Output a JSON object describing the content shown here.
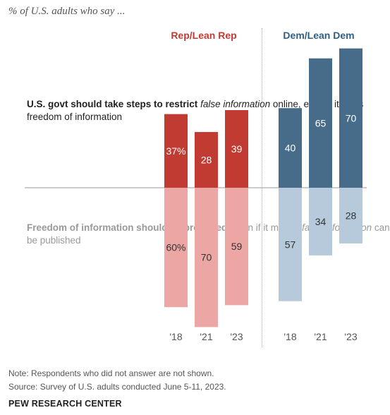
{
  "subtitle": "% of U.S. adults who say ...",
  "groups": {
    "rep": "Rep/Lean Rep",
    "dem": "Dem/Lean Dem"
  },
  "rows": {
    "top": {
      "bold": "U.S. govt should take steps to restrict",
      "italic": "false information",
      "rest": "online, even if it limits freedom of information"
    },
    "bottom": {
      "bold": "Freedom of information should be protected,",
      "rest1": "even if it means",
      "italic": "false information",
      "rest2": "can be published"
    }
  },
  "note": "Note: Respondents who did not answer are not shown.",
  "source": "Source: Survey of U.S. adults conducted June 5-11, 2023.",
  "brand": "PEW RESEARCH CENTER",
  "colors": {
    "rep_top": "#c23b33",
    "rep_bottom": "#eca6a4",
    "dem_top": "#476c8a",
    "dem_bottom": "#b6cadb",
    "label_light": "#ffffff",
    "label_dark": "#333333"
  },
  "chart_data": {
    "type": "bar",
    "categories": [
      "'18",
      "'21",
      "'23"
    ],
    "series": [
      {
        "name": "Rep/Lean Rep",
        "restrict": [
          37,
          28,
          39
        ],
        "protect": [
          60,
          70,
          59
        ],
        "labels_restrict": [
          "37%",
          "28",
          "39"
        ],
        "labels_protect": [
          "60%",
          "70",
          "59"
        ]
      },
      {
        "name": "Dem/Lean Dem",
        "restrict": [
          40,
          65,
          70
        ],
        "protect": [
          57,
          34,
          28
        ],
        "labels_restrict": [
          "40",
          "65",
          "70"
        ],
        "labels_protect": [
          "57",
          "34",
          "28"
        ]
      }
    ],
    "title": "",
    "xlabel": "",
    "ylabel": "",
    "ylim": [
      0,
      100
    ]
  }
}
